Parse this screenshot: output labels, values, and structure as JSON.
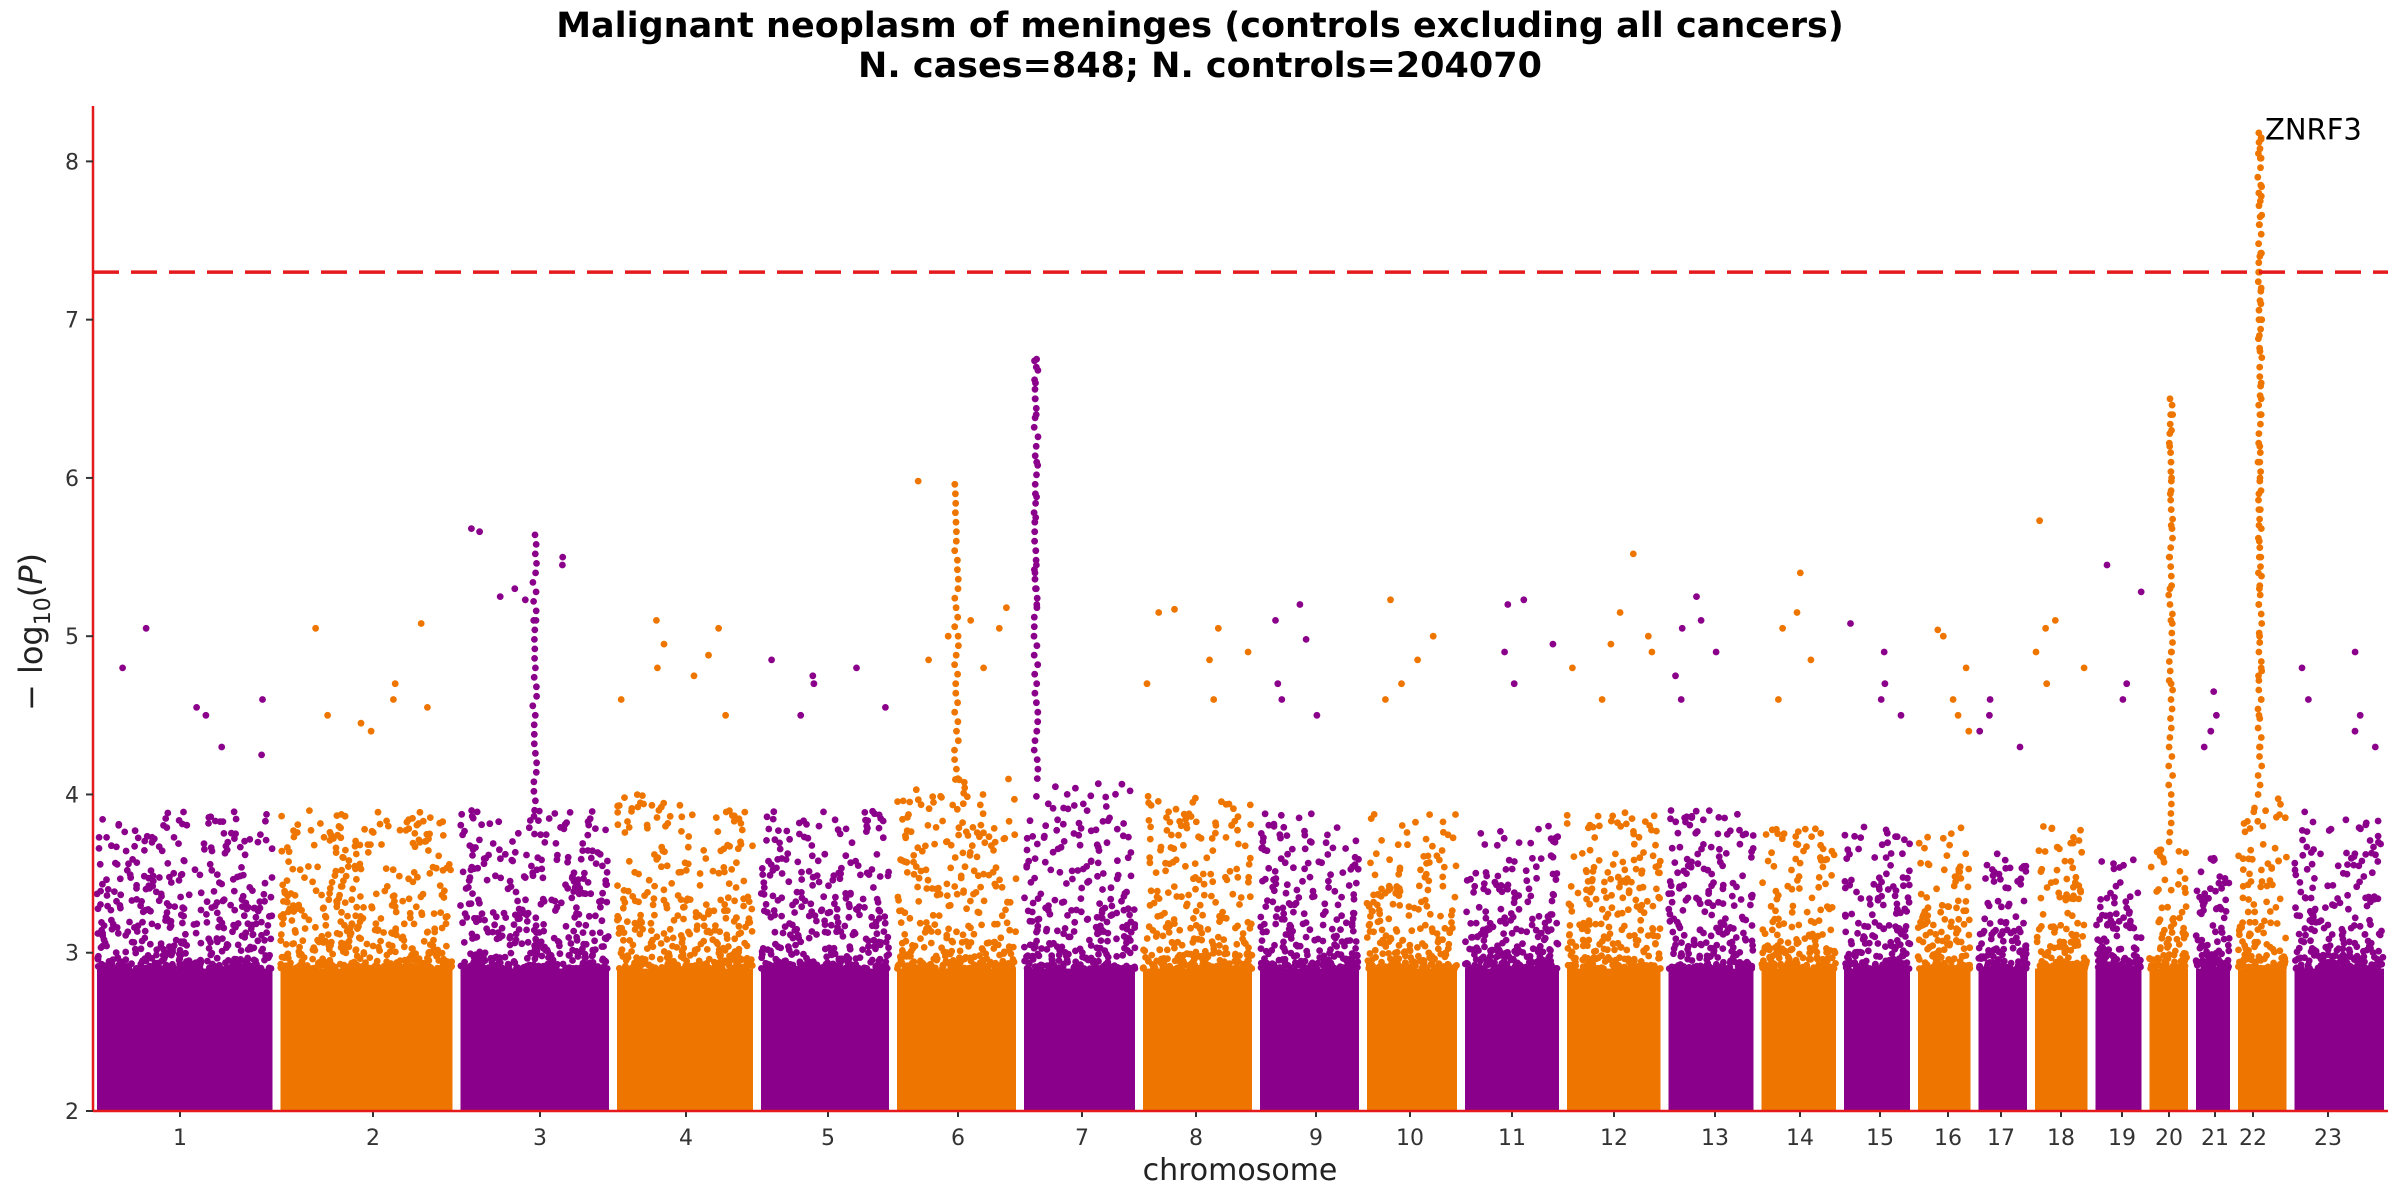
{
  "chart_data": {
    "type": "scatter",
    "title": "Malignant neoplasm of meninges (controls excluding all cancers)",
    "subtitle": "N. cases=848; N. controls=204070",
    "xlabel": "chromosome",
    "ylabel": "−log10(P)",
    "ylim": [
      2,
      8.35
    ],
    "yticks": [
      2,
      3,
      4,
      5,
      6,
      7,
      8
    ],
    "significance_line": 7.3,
    "grid": false,
    "colors": {
      "odd": "#8b008b",
      "even": "#ee7600",
      "axis": "#e41a1c",
      "threshold": "#e41a1c"
    },
    "annotation": {
      "label": "ZNRF3",
      "chromosome": "22",
      "value": 8.15
    },
    "chromosomes": [
      {
        "label": "1",
        "color": "purple",
        "base_max": 3.9,
        "top_values": [
          5.05,
          4.6,
          4.8,
          4.55,
          4.5,
          4.3,
          4.25
        ]
      },
      {
        "label": "2",
        "color": "orange",
        "base_max": 3.9,
        "top_values": [
          5.08,
          5.05,
          4.7,
          4.6,
          4.55,
          4.5,
          4.45,
          4.4
        ]
      },
      {
        "label": "3",
        "color": "purple",
        "base_max": 3.9,
        "top_values": [
          5.68,
          5.66,
          5.5,
          5.45,
          5.3,
          5.25,
          5.23,
          5.1
        ]
      },
      {
        "label": "4",
        "color": "orange",
        "base_max": 4.0,
        "top_values": [
          5.1,
          5.05,
          4.95,
          4.88,
          4.8,
          4.75,
          4.6,
          4.5
        ]
      },
      {
        "label": "5",
        "color": "purple",
        "base_max": 3.9,
        "top_values": [
          4.85,
          4.8,
          4.75,
          4.7,
          4.55,
          4.5
        ]
      },
      {
        "label": "6",
        "color": "orange",
        "base_max": 4.1,
        "top_values": [
          5.98,
          5.18,
          5.1,
          5.05,
          5.0,
          4.85,
          4.8
        ]
      },
      {
        "label": "7",
        "color": "purple",
        "base_max": 4.1,
        "top_values": [
          6.75,
          6.7,
          6.6,
          6.5,
          6.4,
          6.1,
          5.88,
          5.75,
          5.45,
          5.4,
          5.3,
          5.2
        ]
      },
      {
        "label": "8",
        "color": "orange",
        "base_max": 4.0,
        "top_values": [
          5.17,
          5.15,
          5.05,
          4.9,
          4.85,
          4.7,
          4.6
        ]
      },
      {
        "label": "9",
        "color": "purple",
        "base_max": 3.9,
        "top_values": [
          5.2,
          5.1,
          4.98,
          4.7,
          4.6,
          4.5
        ]
      },
      {
        "label": "10",
        "color": "orange",
        "base_max": 3.9,
        "top_values": [
          5.23,
          5.0,
          4.85,
          4.7,
          4.6
        ]
      },
      {
        "label": "11",
        "color": "purple",
        "base_max": 3.8,
        "top_values": [
          5.23,
          5.2,
          4.95,
          4.9,
          4.7
        ]
      },
      {
        "label": "12",
        "color": "orange",
        "base_max": 3.9,
        "top_values": [
          5.52,
          5.15,
          5.0,
          4.95,
          4.9,
          4.8,
          4.6
        ]
      },
      {
        "label": "13",
        "color": "purple",
        "base_max": 3.9,
        "top_values": [
          5.25,
          5.1,
          5.05,
          4.9,
          4.75,
          4.6
        ]
      },
      {
        "label": "14",
        "color": "orange",
        "base_max": 3.8,
        "top_values": [
          5.4,
          5.15,
          5.05,
          4.85,
          4.6
        ]
      },
      {
        "label": "15",
        "color": "purple",
        "base_max": 3.8,
        "top_values": [
          5.08,
          4.9,
          4.7,
          4.6,
          4.5
        ]
      },
      {
        "label": "16",
        "color": "orange",
        "base_max": 3.8,
        "top_values": [
          5.04,
          5.0,
          4.8,
          4.6,
          4.5,
          4.4
        ]
      },
      {
        "label": "17",
        "color": "purple",
        "base_max": 3.7,
        "top_values": [
          4.6,
          4.5,
          4.4,
          4.3
        ]
      },
      {
        "label": "18",
        "color": "orange",
        "base_max": 3.8,
        "top_values": [
          5.73,
          5.1,
          5.05,
          4.9,
          4.8,
          4.7
        ]
      },
      {
        "label": "19",
        "color": "purple",
        "base_max": 3.6,
        "top_values": [
          5.45,
          5.28,
          4.7,
          4.6
        ]
      },
      {
        "label": "20",
        "color": "orange",
        "base_max": 3.7,
        "top_values": [
          6.5,
          6.4,
          6.3,
          6.2,
          6.0,
          5.9,
          5.7,
          5.5,
          5.3,
          5.1,
          4.9,
          4.7
        ]
      },
      {
        "label": "21",
        "color": "purple",
        "base_max": 3.6,
        "top_values": [
          4.65,
          4.5,
          4.4,
          4.3
        ]
      },
      {
        "label": "22",
        "color": "orange",
        "base_max": 4.0,
        "top_values": [
          8.18,
          8.15,
          8.12,
          8.05,
          8.02,
          7.85,
          7.8,
          7.75,
          7.65,
          7.6,
          7.42,
          7.4,
          7.3,
          7.2,
          7.1,
          7.0,
          6.9,
          6.8,
          6.6,
          6.5,
          6.4,
          6.2,
          6.1,
          6.0,
          5.9,
          5.8,
          5.7,
          5.6,
          5.5,
          5.4,
          5.3,
          5.2,
          5.0,
          4.8,
          4.75,
          4.6,
          4.5,
          4.3
        ]
      },
      {
        "label": "23",
        "color": "purple",
        "base_max": 3.9,
        "top_values": [
          4.9,
          4.8,
          4.6,
          4.5,
          4.4,
          4.3
        ]
      }
    ]
  }
}
